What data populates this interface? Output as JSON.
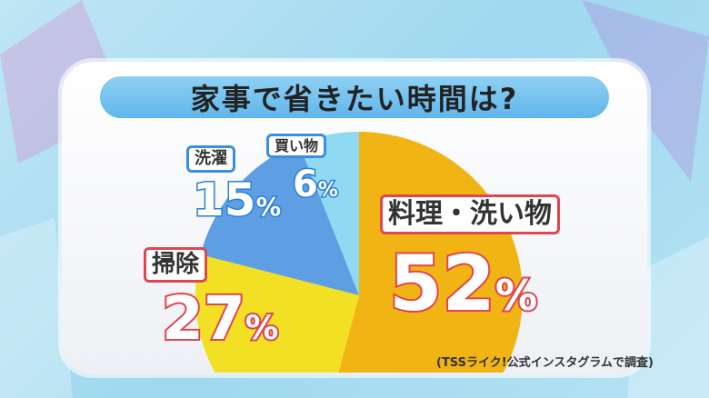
{
  "chart_data": {
    "type": "pie",
    "title": "家事で省きたい時間は?",
    "slices": [
      {
        "label": "料理・洗い物",
        "value": 52,
        "color": "#f0b414"
      },
      {
        "label": "掃除",
        "value": 27,
        "color": "#f2e024"
      },
      {
        "label": "洗濯",
        "value": 15,
        "color": "#5e9fe4"
      },
      {
        "label": "買い物",
        "value": 6,
        "color": "#8fd9f2"
      }
    ],
    "value_labels": [
      "52",
      "27",
      "15",
      "6"
    ],
    "unit": "%",
    "source": "(TSSライク!公式インスタグラムで調査)"
  }
}
